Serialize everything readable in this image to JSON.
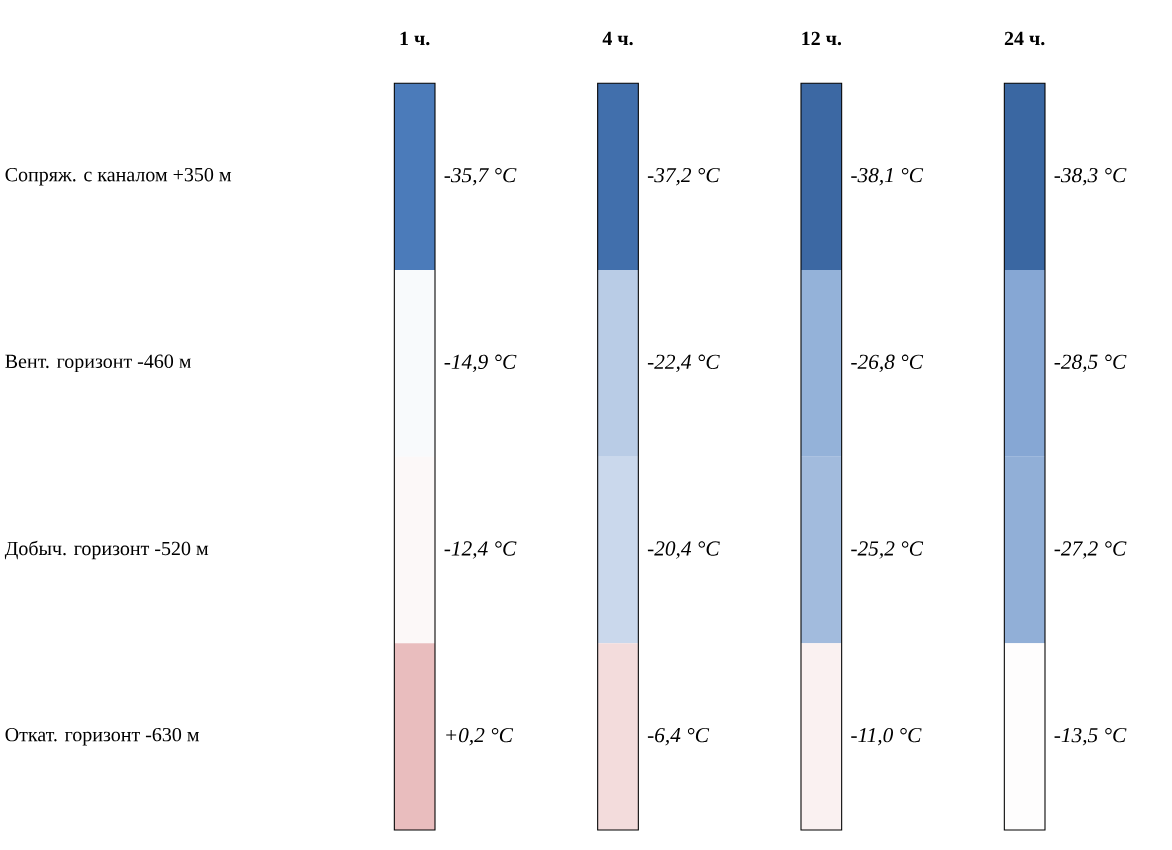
{
  "chart_data": {
    "type": "heatmap",
    "categories": [
      "1 ч.",
      "4 ч.",
      "12 ч.",
      "24 ч."
    ],
    "y_categories": [
      "Сопряж. с каналом +350 м",
      "Вент. горизонт -460 м",
      "Добыч. горизонт -520 м",
      "Откат. горизонт -630 м"
    ],
    "cells": [
      [
        -35.7,
        -37.2,
        -38.1,
        -38.3
      ],
      [
        -14.9,
        -22.4,
        -26.8,
        -28.5
      ],
      [
        -12.4,
        -20.4,
        -25.2,
        -27.2
      ],
      [
        0.2,
        -6.4,
        -11.0,
        -13.5
      ]
    ],
    "cell_labels": [
      [
        "-35,7 °C",
        "-37,2 °C",
        "-38,1 °C",
        "-38,3 °C"
      ],
      [
        "-14,9 °C",
        "-22,4 °C",
        "-26,8 °C",
        "-28,5 °C"
      ],
      [
        "-12,4 °C",
        "-20,4 °C",
        "-25,2 °C",
        "-27,2 °C"
      ],
      [
        "+0,2 °C",
        "-6,4 °C",
        "-11,0 °C",
        "-13,5 °C"
      ]
    ]
  }
}
